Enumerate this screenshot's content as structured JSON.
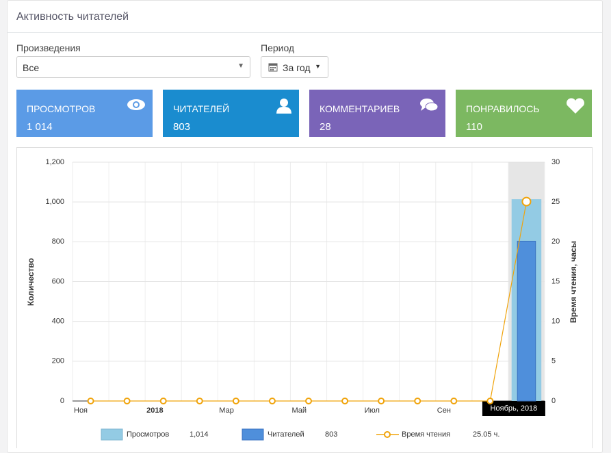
{
  "header": {
    "title": "Активность читателей"
  },
  "filters": {
    "works_label": "Произведения",
    "works_value": "Все",
    "period_label": "Период",
    "period_value": "За год"
  },
  "stats": [
    {
      "label": "ПРОСМОТРОВ",
      "value": "1 014"
    },
    {
      "label": "ЧИТАТЕЛЕЙ",
      "value": "803"
    },
    {
      "label": "КОММЕНТАРИЕВ",
      "value": "28"
    },
    {
      "label": "ПОНРАВИЛОСЬ",
      "value": "110"
    }
  ],
  "chart_data": {
    "type": "bar-line",
    "y_label": "Количество",
    "y2_label": "Время чтения, часы",
    "categories": [
      "Ноя",
      null,
      "2018",
      null,
      "Мар",
      null,
      "Май",
      null,
      "Июл",
      null,
      "Сен",
      null,
      "Ноябрь, 2018"
    ],
    "series": [
      {
        "name": "Просмотров",
        "color": "#93cbe4",
        "kind": "bar",
        "legend_value": "1,014",
        "values": [
          0,
          0,
          0,
          0,
          0,
          0,
          0,
          0,
          0,
          0,
          0,
          0,
          1014
        ]
      },
      {
        "name": "Читателей",
        "color": "#4f8fdb",
        "kind": "bar",
        "legend_value": "803",
        "values": [
          0,
          0,
          0,
          0,
          0,
          0,
          0,
          0,
          0,
          0,
          0,
          0,
          803
        ]
      },
      {
        "name": "Время чтения",
        "color": "#f0a30a",
        "kind": "line",
        "axis": "y2",
        "legend_value": "25.05 ч.",
        "values": [
          0,
          0,
          0,
          0,
          0,
          0,
          0,
          0,
          0,
          0,
          0,
          0,
          25.05
        ]
      }
    ],
    "ylim": [
      0,
      1200
    ],
    "yticks": [
      0,
      200,
      400,
      600,
      800,
      {
        "value": 1000,
        "label": "1,000"
      },
      {
        "value": 1200,
        "label": "1,200"
      }
    ],
    "y2lim": [
      0,
      30
    ],
    "y2ticks": [
      0,
      5,
      10,
      15,
      20,
      25,
      30
    ],
    "grid": true
  }
}
